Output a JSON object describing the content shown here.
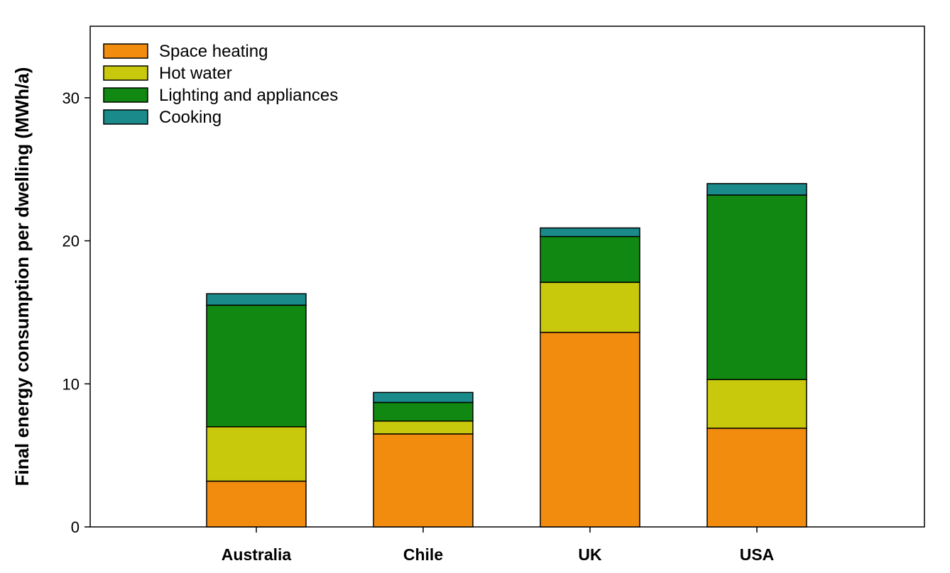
{
  "chart_data": {
    "type": "bar",
    "stacked": true,
    "title": "",
    "xlabel": "",
    "ylabel": "Final energy consumption per dwelling (MWh/a)",
    "ylim": [
      0,
      35
    ],
    "yticks": [
      0,
      10,
      20,
      30
    ],
    "categories": [
      "Australia",
      "Chile",
      "UK",
      "USA"
    ],
    "series": [
      {
        "name": "Space heating",
        "color": "#f28c0f",
        "values": [
          3.2,
          6.5,
          13.6,
          6.9
        ]
      },
      {
        "name": "Hot water",
        "color": "#c8c80c",
        "values": [
          3.8,
          0.9,
          3.5,
          3.4
        ]
      },
      {
        "name": "Lighting and appliances",
        "color": "#118811",
        "values": [
          8.5,
          1.3,
          3.2,
          12.9
        ]
      },
      {
        "name": "Cooking",
        "color": "#1a8a8a",
        "values": [
          0.8,
          0.7,
          0.6,
          0.8
        ]
      }
    ],
    "legend_position": "top-left",
    "grid": false
  }
}
